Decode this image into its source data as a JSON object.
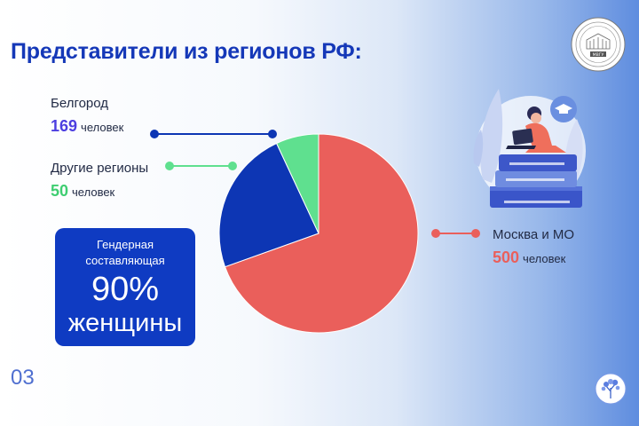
{
  "slide": {
    "title": "Представители из регионов РФ:",
    "page_number": "03"
  },
  "logo": {
    "text": "МВГУ",
    "ring_text": "МОСКОВСКИЙ ГОСУДАРСТВЕННЫЙ УНИВЕРСИТЕТ"
  },
  "gender": {
    "caption": "Гендерная составляющая",
    "percent": "90%",
    "word": "женщины"
  },
  "chart_data": {
    "type": "pie",
    "slices": [
      {
        "label": "Москва и МО",
        "value": 500,
        "unit": "человек",
        "color": "#ea5f5b"
      },
      {
        "label": "Белгород",
        "value": 169,
        "unit": "человек",
        "color": "#0d36b4"
      },
      {
        "label": "Другие регионы",
        "value": 50,
        "unit": "человек",
        "color": "#5fe08f"
      }
    ],
    "start_angle": "top",
    "direction": "clockwise"
  },
  "legend": {
    "belgorod": {
      "name": "Белгород",
      "value": "169",
      "unit": "человек",
      "color": "#4d3fe0",
      "line_color": "#0d36b4"
    },
    "others": {
      "name": "Другие регионы",
      "value": "50",
      "unit": "человек",
      "color": "#3fce71",
      "line_color": "#5fe08f"
    },
    "moscow": {
      "name": "Москва и МО",
      "value": "500",
      "unit": "человек",
      "color": "#ea5f5b",
      "line_color": "#ea5f5b"
    }
  },
  "illustration": {
    "name": "student-with-laptop-on-books"
  }
}
